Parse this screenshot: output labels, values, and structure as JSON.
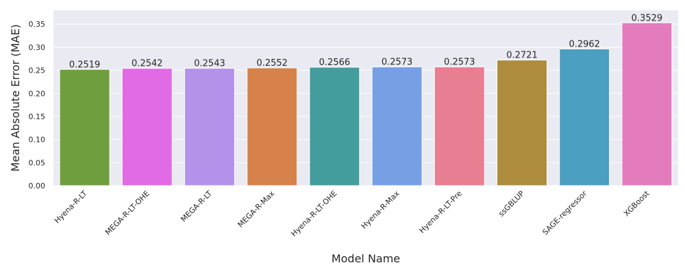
{
  "chart_data": {
    "type": "bar",
    "title": "",
    "xlabel": "Model Name",
    "ylabel": "Mean Absolute Error (MAE)",
    "ylim": [
      0,
      0.38
    ],
    "yticks": [
      "0.00",
      "0.05",
      "0.10",
      "0.15",
      "0.20",
      "0.25",
      "0.30",
      "0.35"
    ],
    "yticks_values": [
      0,
      0.05,
      0.1,
      0.15,
      0.2,
      0.25,
      0.3,
      0.35
    ],
    "grid": true,
    "background": "#eaeaf2",
    "categories": [
      "Hyena-R-LT",
      "MEGA-R-LT-OHE",
      "MEGA-R-LT",
      "MEGA-R-Max",
      "Hyena-R-LT-OHE",
      "Hyena-R-Max",
      "Hyena-R-LT-Pre",
      "ssGBLUP",
      "SAGE-regressor",
      "XGBoost"
    ],
    "values": [
      0.2519,
      0.2542,
      0.2543,
      0.2552,
      0.2566,
      0.2573,
      0.2573,
      0.2721,
      0.2962,
      0.3529
    ],
    "value_labels": [
      "0.2519",
      "0.2542",
      "0.2543",
      "0.2552",
      "0.2566",
      "0.2573",
      "0.2573",
      "0.2721",
      "0.2962",
      "0.3529"
    ],
    "colors": [
      "#6e9e3e",
      "#e06be4",
      "#b592e9",
      "#d6824a",
      "#439d9c",
      "#76a0e3",
      "#e87e91",
      "#ad8c3d",
      "#4b9fc0",
      "#e47bbd"
    ]
  }
}
